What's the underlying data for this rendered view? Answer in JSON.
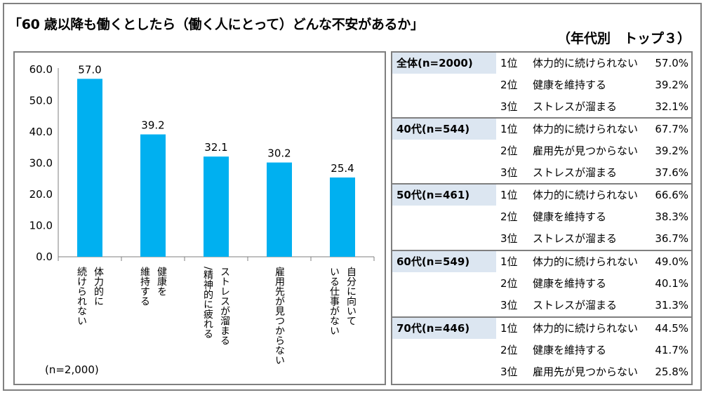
{
  "title": "「60 歳以降も働くとしたら（働く人にとって）どんな不安があるか」",
  "subtitle": "（年代別　トップ３）",
  "colors": {
    "bar": "#00b0f0",
    "group_header_bg": "#dce6f1",
    "border": "#7f7f7f"
  },
  "chart_data": {
    "type": "bar",
    "categories": [
      [
        "体力的に",
        "続けられない"
      ],
      [
        "健康を",
        "維持する"
      ],
      [
        "ストレスが溜まる",
        "/精神的に疲れる"
      ],
      [
        "雇用先が見つからない"
      ],
      [
        "自分に向いて",
        "いる仕事がない"
      ]
    ],
    "values": [
      57.0,
      39.2,
      32.1,
      30.2,
      25.4
    ],
    "value_labels": [
      "57.0",
      "39.2",
      "32.1",
      "30.2",
      "25.4"
    ],
    "yticks": [
      "60.0",
      "50.0",
      "40.0",
      "30.0",
      "20.0",
      "10.0",
      "0.0"
    ],
    "ylim": [
      0,
      60
    ],
    "note": "(n=2,000)"
  },
  "table": [
    {
      "label": "全体(n=2000)",
      "rows": [
        {
          "rank": "1位",
          "item": "体力的に続けられない",
          "pct": "57.0%"
        },
        {
          "rank": "2位",
          "item": "健康を維持する",
          "pct": "39.2%"
        },
        {
          "rank": "3位",
          "item": "ストレスが溜まる",
          "pct": "32.1%"
        }
      ]
    },
    {
      "label": "40代(n=544)",
      "rows": [
        {
          "rank": "1位",
          "item": "体力的に続けられない",
          "pct": "67.7%"
        },
        {
          "rank": "2位",
          "item": "雇用先が見つからない",
          "pct": "39.2%"
        },
        {
          "rank": "3位",
          "item": "ストレスが溜まる",
          "pct": "37.6%"
        }
      ]
    },
    {
      "label": "50代(n=461)",
      "rows": [
        {
          "rank": "1位",
          "item": "体力的に続けられない",
          "pct": "66.6%"
        },
        {
          "rank": "2位",
          "item": "健康を維持する",
          "pct": "38.3%"
        },
        {
          "rank": "3位",
          "item": "ストレスが溜まる",
          "pct": "36.7%"
        }
      ]
    },
    {
      "label": "60代(n=549)",
      "rows": [
        {
          "rank": "1位",
          "item": "体力的に続けられない",
          "pct": "49.0%"
        },
        {
          "rank": "2位",
          "item": "健康を維持する",
          "pct": "40.1%"
        },
        {
          "rank": "3位",
          "item": "ストレスが溜まる",
          "pct": "31.3%"
        }
      ]
    },
    {
      "label": "70代(n=446)",
      "rows": [
        {
          "rank": "1位",
          "item": "体力的に続けられない",
          "pct": "44.5%"
        },
        {
          "rank": "2位",
          "item": "健康を維持する",
          "pct": "41.7%"
        },
        {
          "rank": "3位",
          "item": "雇用先が見つからない",
          "pct": "25.8%"
        }
      ]
    }
  ]
}
